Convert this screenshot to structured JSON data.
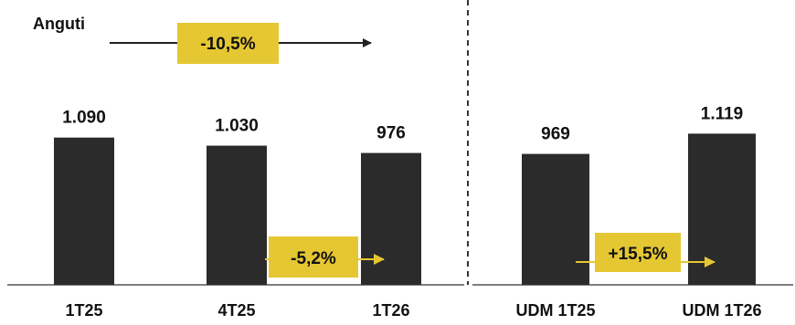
{
  "chart_data": {
    "type": "bar",
    "title": "Anguti",
    "categories": [
      "1T25",
      "4T25",
      "1T26",
      "UDM 1T25",
      "UDM 1T26"
    ],
    "values": [
      1090,
      1030,
      976,
      969,
      1119
    ],
    "value_labels": [
      "1.090",
      "1.030",
      "976",
      "969",
      "1.119"
    ],
    "groups": [
      {
        "categories": [
          "1T25",
          "4T25",
          "1T26"
        ]
      },
      {
        "categories": [
          "UDM 1T25",
          "UDM 1T26"
        ]
      }
    ],
    "annotations": [
      {
        "text": "-10,5%",
        "from": "1T25",
        "to": "1T26"
      },
      {
        "text": "-5,2%",
        "from": "4T25",
        "to": "1T26"
      },
      {
        "text": "+15,5%",
        "from": "UDM 1T25",
        "to": "UDM 1T26"
      }
    ],
    "xlabel": "",
    "ylabel": "",
    "ylim": [
      0,
      1250
    ],
    "grid": false
  },
  "colors": {
    "bar": "#2b2b2b",
    "highlight": "#e5c733",
    "axis": "#555555",
    "text": "#111111"
  }
}
